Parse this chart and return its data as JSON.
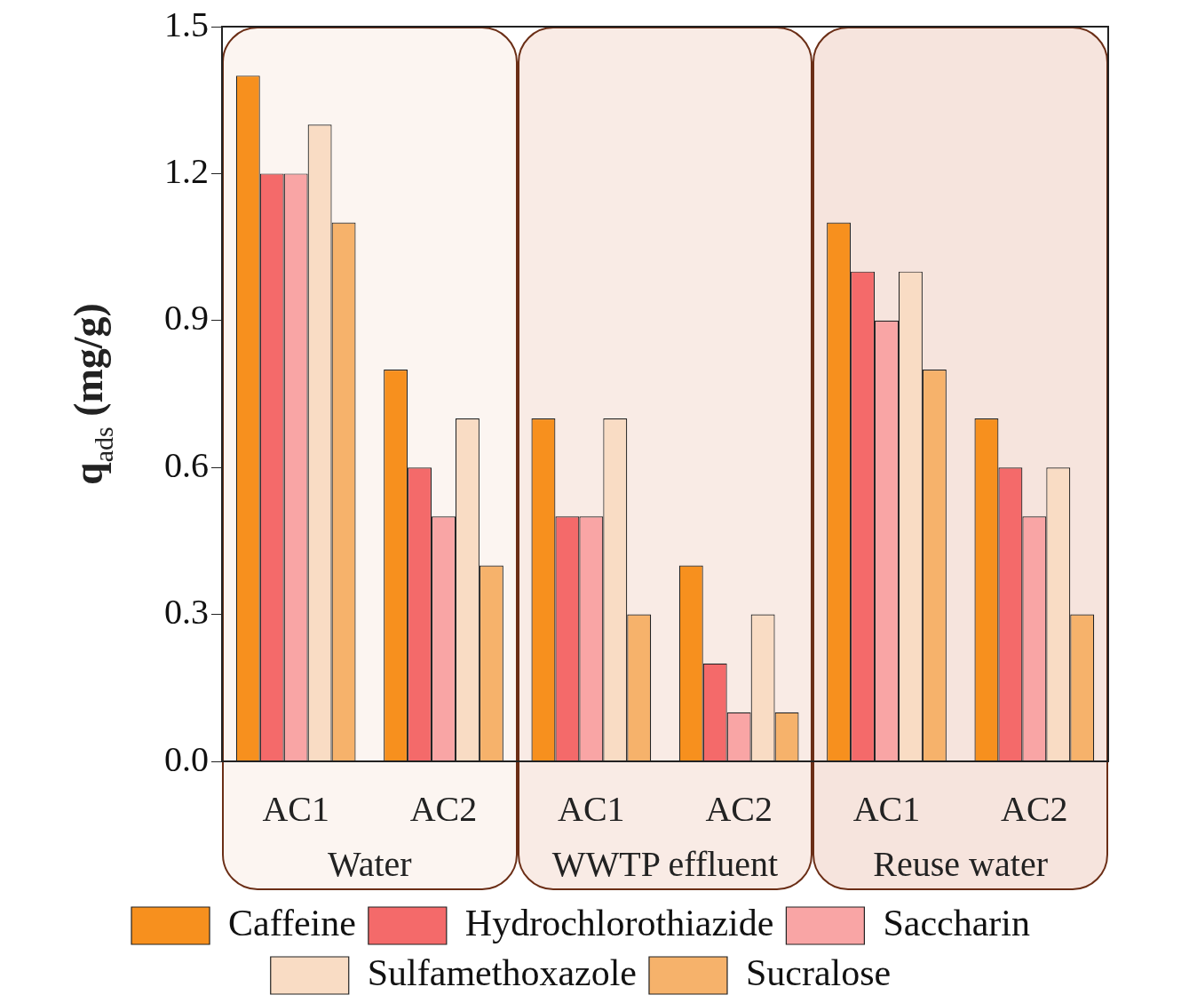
{
  "chart_data": {
    "type": "bar",
    "ylabel": "q$_{ads}$ (mg/g)",
    "categories": [
      "AC1",
      "AC2",
      "AC1",
      "AC2",
      "AC1",
      "AC2"
    ],
    "annotations": [
      "Water",
      "WWTP effluent",
      "Reuse water"
    ],
    "series": [
      {
        "name": "Caffeine",
        "color": "#f7901e",
        "values": [
          1.4,
          0.8,
          0.7,
          0.4,
          1.1,
          0.7
        ]
      },
      {
        "name": "Hydrochlorothiazide",
        "color": "#f46a6a",
        "values": [
          1.2,
          0.6,
          0.5,
          0.2,
          1.0,
          0.6
        ]
      },
      {
        "name": "Saccharin",
        "color": "#f9a5a5",
        "values": [
          1.2,
          0.5,
          0.5,
          0.1,
          0.9,
          0.5
        ]
      },
      {
        "name": "Sulfamethoxazole",
        "color": "#f9dcc4",
        "values": [
          1.3,
          0.7,
          0.7,
          0.3,
          1.0,
          0.6
        ]
      },
      {
        "name": "Sucralose",
        "color": "#f6b26b",
        "values": [
          1.1,
          0.4,
          0.3,
          0.1,
          0.8,
          0.3
        ]
      }
    ],
    "ylim": [
      0,
      1.5
    ],
    "yticks": [
      {
        "value": 0,
        "label": "0.0"
      },
      {
        "value": 0.3,
        "label": "0.3"
      },
      {
        "value": 0.6,
        "label": "0.6"
      },
      {
        "value": 0.9,
        "label": "0.9"
      },
      {
        "value": 1.2,
        "label": "1.2"
      },
      {
        "value": 1.5,
        "label": "1.5"
      }
    ],
    "grid": false,
    "legend": "bottom"
  }
}
